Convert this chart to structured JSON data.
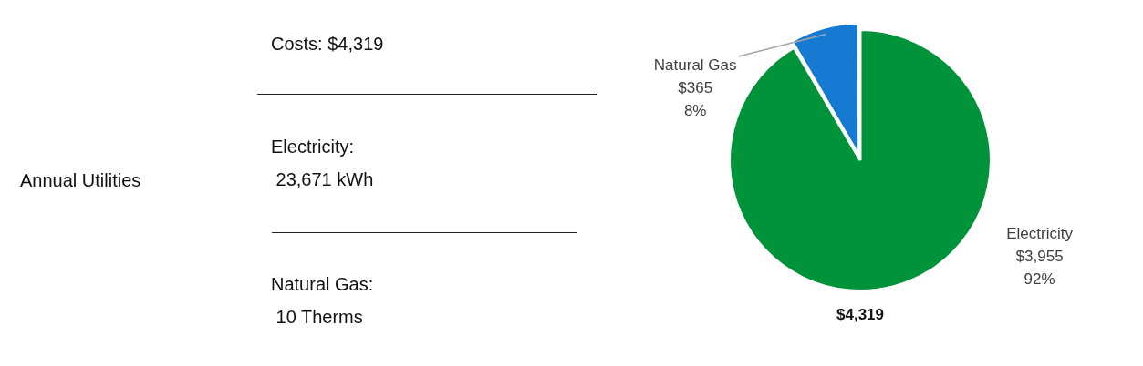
{
  "chart_data": [
    {
      "type": "other",
      "title": "Annual Utilities",
      "annotations": [
        "Costs: $4,319",
        "Electricity:\n 23,671 kWh",
        "Natural Gas:\n 10 Therms"
      ]
    },
    {
      "type": "pie",
      "categories": [
        "Electricity",
        "Natural Gas"
      ],
      "values": [
        3955,
        365
      ],
      "colors": [
        "#009339",
        "#1679d2"
      ],
      "value_labels": [
        "$3,955\n92%",
        "$365\n8%"
      ],
      "annotations": [
        "$4,319"
      ]
    }
  ]
}
